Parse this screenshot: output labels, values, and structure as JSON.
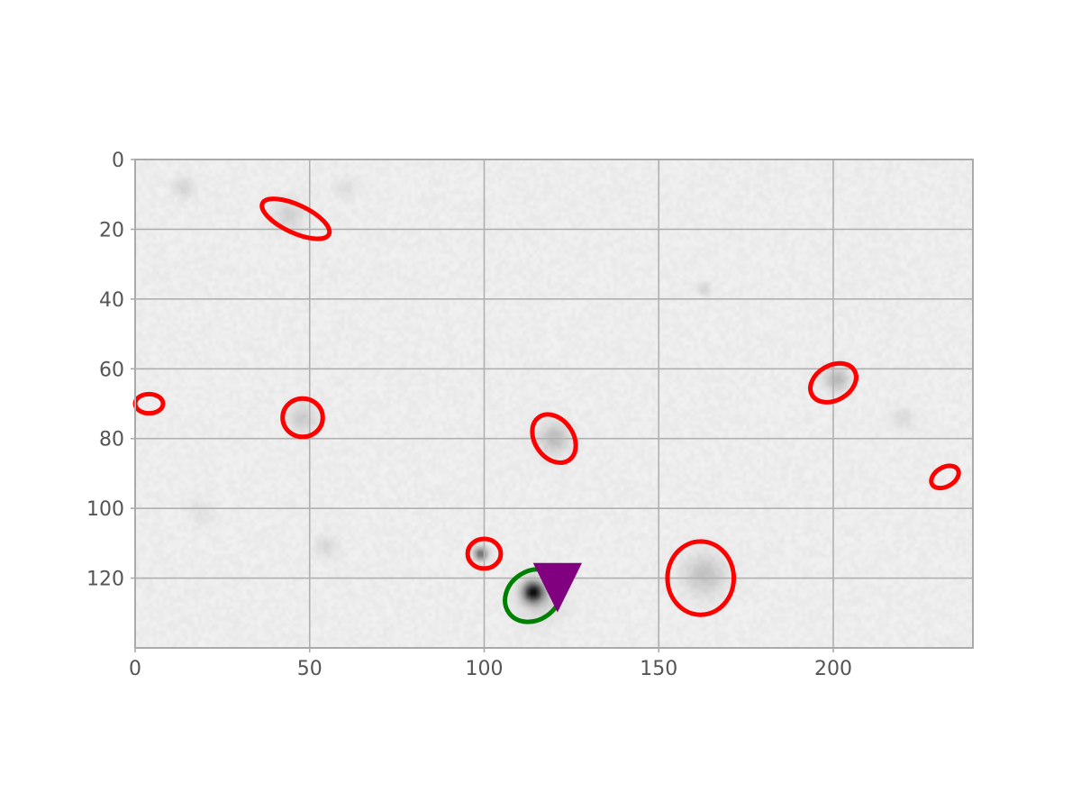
{
  "chart_data": {
    "type": "image",
    "xlim": [
      0,
      240
    ],
    "ylim": [
      140,
      0
    ],
    "x_ticks": [
      0,
      50,
      100,
      150,
      200
    ],
    "y_ticks": [
      0,
      20,
      40,
      60,
      80,
      100,
      120
    ],
    "grid": true,
    "background": {
      "colormap": "gray_r",
      "noise_level": 0.04,
      "sources": [
        {
          "x": 14,
          "y": 8,
          "sigma": 2.0,
          "amp": 0.1
        },
        {
          "x": 44,
          "y": 16,
          "sigma": 3.0,
          "amp": 0.12
        },
        {
          "x": 60,
          "y": 8,
          "sigma": 2.0,
          "amp": 0.07
        },
        {
          "x": 48,
          "y": 74,
          "sigma": 2.8,
          "amp": 0.14
        },
        {
          "x": 55,
          "y": 111,
          "sigma": 2.2,
          "amp": 0.08
        },
        {
          "x": 19,
          "y": 101,
          "sigma": 2.5,
          "amp": 0.05
        },
        {
          "x": 120,
          "y": 80,
          "sigma": 3.0,
          "amp": 0.2
        },
        {
          "x": 163,
          "y": 37,
          "sigma": 1.3,
          "amp": 0.1
        },
        {
          "x": 163,
          "y": 119,
          "sigma": 4.2,
          "amp": 0.17
        },
        {
          "x": 201,
          "y": 63,
          "sigma": 2.4,
          "amp": 0.22
        },
        {
          "x": 220,
          "y": 74,
          "sigma": 2.2,
          "amp": 0.07
        },
        {
          "x": 99,
          "y": 113,
          "sigma": 1.3,
          "amp": 0.55
        },
        {
          "x": 114,
          "y": 124,
          "sigma": 2.0,
          "amp": 0.85
        },
        {
          "x": 116,
          "y": 126,
          "sigma": 4.5,
          "amp": 0.12
        }
      ]
    },
    "ellipses": [
      {
        "x": 46,
        "y": 17,
        "width": 21,
        "height": 8,
        "angle": 25,
        "color": "#ff0000"
      },
      {
        "x": 4,
        "y": 70,
        "width": 8,
        "height": 5.5,
        "angle": 0,
        "color": "#ff0000"
      },
      {
        "x": 48,
        "y": 74,
        "width": 11.5,
        "height": 11,
        "angle": 0,
        "color": "#ff0000"
      },
      {
        "x": 120,
        "y": 80,
        "width": 15,
        "height": 11,
        "angle": 55,
        "color": "#ff0000"
      },
      {
        "x": 200,
        "y": 64,
        "width": 14,
        "height": 10,
        "angle": -30,
        "color": "#ff0000"
      },
      {
        "x": 232,
        "y": 91,
        "width": 8.5,
        "height": 5.5,
        "angle": -30,
        "color": "#ff0000"
      },
      {
        "x": 100,
        "y": 113,
        "width": 9.5,
        "height": 8.5,
        "angle": 0,
        "color": "#ff0000"
      },
      {
        "x": 162,
        "y": 120,
        "width": 19,
        "height": 21,
        "angle": 0,
        "color": "#ff0000"
      },
      {
        "x": 114,
        "y": 125,
        "width": 17,
        "height": 14,
        "angle": -35,
        "color": "#008000"
      }
    ],
    "markers": [
      {
        "x": 121,
        "y": 120,
        "shape": "triangle-down",
        "color": "#800080",
        "size": 14
      }
    ]
  }
}
